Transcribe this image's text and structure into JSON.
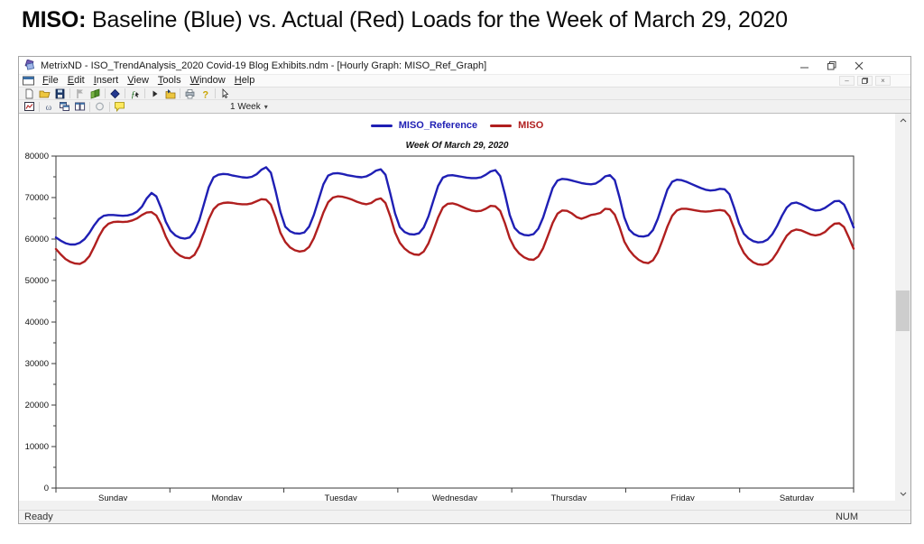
{
  "slide": {
    "title_prefix": "MISO:",
    "title_rest": " Baseline (Blue) vs. Actual (Red) Loads for the Week of March 29, 2020"
  },
  "window": {
    "title": "MetrixND - ISO_TrendAnalysis_2020 Covid-19 Blog Exhibits.ndm - [Hourly Graph: MISO_Ref_Graph]",
    "menu": [
      "File",
      "Edit",
      "Insert",
      "View",
      "Tools",
      "Window",
      "Help"
    ],
    "toolbars": {
      "row1_icons": [
        "new-file",
        "open-folder",
        "save",
        "flag",
        "paste",
        "gem",
        "function-pointer",
        "play",
        "folder-export",
        "print",
        "help",
        "pointer"
      ],
      "row2_icons": [
        "graph",
        "omega",
        "window-cascade",
        "window-tile",
        "disabled-circle",
        "comment"
      ],
      "range_dropdown": "1 Week"
    },
    "status_left": "Ready",
    "status_right": "NUM"
  },
  "chart_data": {
    "type": "line",
    "title": "Week Of March 29, 2020",
    "categories": [
      "Sunday",
      "Monday",
      "Tuesday",
      "Wednesday",
      "Thursday",
      "Friday",
      "Saturday"
    ],
    "x_unit": "hour-of-week",
    "ylim": [
      0,
      80000
    ],
    "ytick_step": 10000,
    "ytick_minor_step": 5000,
    "grid": false,
    "legend_position": "top-center",
    "series": [
      {
        "name": "MISO_Reference",
        "color": "#1f1fb4",
        "values": [
          60400,
          59600,
          59000,
          58700,
          58700,
          59100,
          60000,
          61500,
          63300,
          64800,
          65600,
          65800,
          65800,
          65700,
          65600,
          65700,
          66000,
          66600,
          67800,
          69800,
          71100,
          70300,
          67500,
          64200,
          62000,
          60900,
          60300,
          60100,
          60400,
          61800,
          64500,
          68500,
          72500,
          74900,
          75500,
          75700,
          75600,
          75300,
          75100,
          74900,
          74800,
          75000,
          75600,
          76700,
          77300,
          76000,
          71500,
          66500,
          63000,
          61900,
          61400,
          61300,
          61600,
          63000,
          65800,
          69500,
          73200,
          75300,
          75800,
          75900,
          75700,
          75400,
          75200,
          75000,
          74900,
          75100,
          75700,
          76500,
          76800,
          75500,
          71000,
          66200,
          62900,
          61700,
          61200,
          61100,
          61400,
          62800,
          65500,
          69200,
          72800,
          74800,
          75300,
          75400,
          75200,
          75000,
          74800,
          74700,
          74700,
          74900,
          75500,
          76300,
          76600,
          75200,
          70800,
          65800,
          62700,
          61500,
          61000,
          60900,
          61200,
          62500,
          65200,
          68800,
          72300,
          74100,
          74500,
          74400,
          74100,
          73800,
          73500,
          73300,
          73200,
          73400,
          74100,
          75100,
          75400,
          74200,
          70000,
          65200,
          62300,
          61200,
          60700,
          60600,
          60900,
          62200,
          64900,
          68400,
          71900,
          73800,
          74300,
          74200,
          73800,
          73300,
          72800,
          72300,
          71900,
          71700,
          71800,
          72100,
          72000,
          70800,
          67500,
          63800,
          61300,
          60200,
          59500,
          59200,
          59300,
          59900,
          61200,
          63200,
          65600,
          67600,
          68600,
          68800,
          68400,
          67800,
          67200,
          66900,
          67000,
          67500,
          68300,
          69100,
          69200,
          68300,
          65800,
          62800
        ]
      },
      {
        "name": "MISO",
        "color": "#b01f1f",
        "values": [
          57600,
          56300,
          55200,
          54500,
          54100,
          54000,
          54600,
          55900,
          58100,
          60600,
          62600,
          63700,
          64100,
          64200,
          64100,
          64200,
          64500,
          65000,
          65800,
          66400,
          66500,
          65700,
          63500,
          60600,
          58400,
          56900,
          56000,
          55500,
          55400,
          56200,
          58300,
          61500,
          64800,
          67200,
          68300,
          68700,
          68800,
          68700,
          68500,
          68400,
          68400,
          68600,
          69100,
          69600,
          69500,
          68300,
          65200,
          61500,
          59300,
          58000,
          57300,
          57000,
          57200,
          58100,
          60200,
          63200,
          66400,
          68900,
          70000,
          70300,
          70200,
          69900,
          69500,
          69000,
          68600,
          68400,
          68700,
          69500,
          69800,
          68700,
          65500,
          61600,
          59100,
          57700,
          56800,
          56300,
          56200,
          57000,
          59000,
          62000,
          65200,
          67600,
          68500,
          68600,
          68300,
          67800,
          67300,
          66900,
          66700,
          66800,
          67300,
          68000,
          67900,
          66800,
          63800,
          60200,
          57900,
          56500,
          55600,
          55100,
          55000,
          55800,
          57800,
          60800,
          63900,
          66100,
          66900,
          66800,
          66200,
          65300,
          64900,
          65300,
          65800,
          66000,
          66300,
          67300,
          67200,
          65900,
          62900,
          59400,
          57400,
          56000,
          55000,
          54400,
          54200,
          54900,
          56800,
          59800,
          63000,
          65600,
          66900,
          67300,
          67300,
          67100,
          66900,
          66700,
          66600,
          66700,
          66900,
          67000,
          66800,
          65500,
          62500,
          59000,
          56700,
          55300,
          54400,
          53900,
          53800,
          54100,
          55100,
          56800,
          58900,
          60800,
          61900,
          62300,
          62100,
          61600,
          61100,
          60900,
          61100,
          61700,
          62800,
          63700,
          63800,
          62900,
          60400,
          57700
        ]
      }
    ]
  }
}
